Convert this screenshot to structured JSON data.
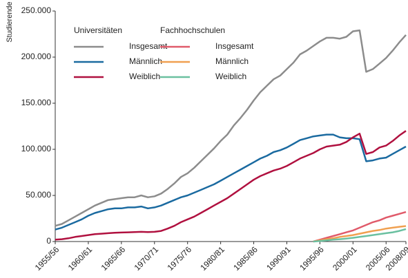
{
  "chart_data": {
    "type": "line",
    "y_label": "Studierende",
    "categories": [
      "1955/56",
      null,
      null,
      null,
      null,
      "1960/61",
      null,
      null,
      null,
      null,
      "1965/66",
      null,
      null,
      null,
      null,
      "1970/71",
      null,
      null,
      null,
      null,
      "1975/76",
      null,
      null,
      null,
      null,
      "1980/81",
      null,
      null,
      null,
      null,
      "1985/86",
      null,
      null,
      null,
      null,
      "1990/91",
      null,
      null,
      null,
      null,
      "1995/96",
      null,
      null,
      null,
      null,
      "2000/01",
      null,
      null,
      null,
      null,
      "2005/06",
      null,
      null,
      "2008/09"
    ],
    "ylim": [
      0,
      250000
    ],
    "yticks": [
      0,
      {
        "value": 50000,
        "label": "50.000"
      },
      {
        "value": 100000,
        "label": "100.000"
      },
      {
        "value": 150000,
        "label": "150.000"
      },
      {
        "value": 200000,
        "label": "200.000"
      },
      {
        "value": 250000,
        "label": "250.000"
      }
    ],
    "groups": [
      {
        "name": "Universitäten",
        "series": [
          {
            "name": "Insgesamt",
            "color": "#8c8c8c",
            "values": [
              17000,
              19000,
              23000,
              27000,
              31000,
              35000,
              39000,
              42000,
              45000,
              46000,
              47000,
              48000,
              48000,
              50000,
              48000,
              49000,
              52000,
              57000,
              63000,
              70000,
              74000,
              80000,
              87000,
              94000,
              101000,
              109000,
              116000,
              126000,
              134000,
              143000,
              153000,
              162000,
              169000,
              176000,
              180000,
              187000,
              194000,
              203000,
              207000,
              212000,
              217000,
              221000,
              221000,
              220000,
              222000,
              228000,
              229000,
              184000,
              187000,
              193000,
              199000,
              207000,
              216000,
              224000
            ]
          },
          {
            "name": "Männlich",
            "color": "#1a6aa0",
            "values": [
              13000,
              15000,
              18000,
              21000,
              24000,
              28000,
              31000,
              33000,
              35000,
              36000,
              36000,
              37000,
              37000,
              38000,
              36000,
              37000,
              39000,
              42000,
              45000,
              48000,
              50000,
              53000,
              56000,
              59000,
              62000,
              66000,
              70000,
              74000,
              78000,
              82000,
              86000,
              90000,
              93000,
              97000,
              99000,
              102000,
              106000,
              110000,
              112000,
              114000,
              115000,
              116000,
              116000,
              113000,
              112000,
              112000,
              111000,
              87000,
              88000,
              90000,
              91000,
              95000,
              99000,
              103000
            ]
          },
          {
            "name": "Weiblich",
            "color": "#b0103f",
            "values": [
              2000,
              2500,
              3500,
              5000,
              6000,
              7000,
              8000,
              8500,
              9000,
              9500,
              9800,
              10000,
              10200,
              10500,
              10300,
              10500,
              11500,
              14000,
              17000,
              21000,
              24000,
              27000,
              31000,
              35000,
              39000,
              43000,
              47000,
              52000,
              57000,
              62000,
              67000,
              71000,
              74000,
              77000,
              79000,
              82000,
              86000,
              90000,
              93000,
              96000,
              100000,
              103000,
              104000,
              105000,
              108000,
              113000,
              117000,
              95000,
              97000,
              102000,
              104000,
              109000,
              115000,
              120000
            ]
          }
        ]
      },
      {
        "name": "Fachhochschulen",
        "series": [
          {
            "name": "Insgesamt",
            "color": "#e05a6a",
            "values": [
              null,
              null,
              null,
              null,
              null,
              null,
              null,
              null,
              null,
              null,
              null,
              null,
              null,
              null,
              null,
              null,
              null,
              null,
              null,
              null,
              null,
              null,
              null,
              null,
              null,
              null,
              null,
              null,
              null,
              null,
              null,
              null,
              null,
              null,
              null,
              null,
              null,
              null,
              null,
              0,
              2000,
              4000,
              6000,
              8000,
              10000,
              12000,
              15000,
              18000,
              21000,
              23000,
              26000,
              28000,
              30000,
              32000
            ]
          },
          {
            "name": "Männlich",
            "color": "#f0a050",
            "values": [
              null,
              null,
              null,
              null,
              null,
              null,
              null,
              null,
              null,
              null,
              null,
              null,
              null,
              null,
              null,
              null,
              null,
              null,
              null,
              null,
              null,
              null,
              null,
              null,
              null,
              null,
              null,
              null,
              null,
              null,
              null,
              null,
              null,
              null,
              null,
              null,
              null,
              null,
              null,
              0,
              1200,
              2500,
              3500,
              5000,
              6000,
              7000,
              8500,
              10000,
              11500,
              12500,
              14000,
              15000,
              16000,
              16800
            ]
          },
          {
            "name": "Weiblich",
            "color": "#6ac0a0",
            "values": [
              null,
              null,
              null,
              null,
              null,
              null,
              null,
              null,
              null,
              null,
              null,
              null,
              null,
              null,
              null,
              null,
              null,
              null,
              null,
              null,
              null,
              null,
              null,
              null,
              null,
              null,
              null,
              null,
              null,
              null,
              null,
              null,
              null,
              null,
              null,
              null,
              null,
              null,
              null,
              0,
              500,
              1200,
              2000,
              2500,
              3200,
              4000,
              5000,
              6000,
              7000,
              8000,
              9000,
              10000,
              11500,
              13500
            ]
          }
        ]
      }
    ]
  }
}
